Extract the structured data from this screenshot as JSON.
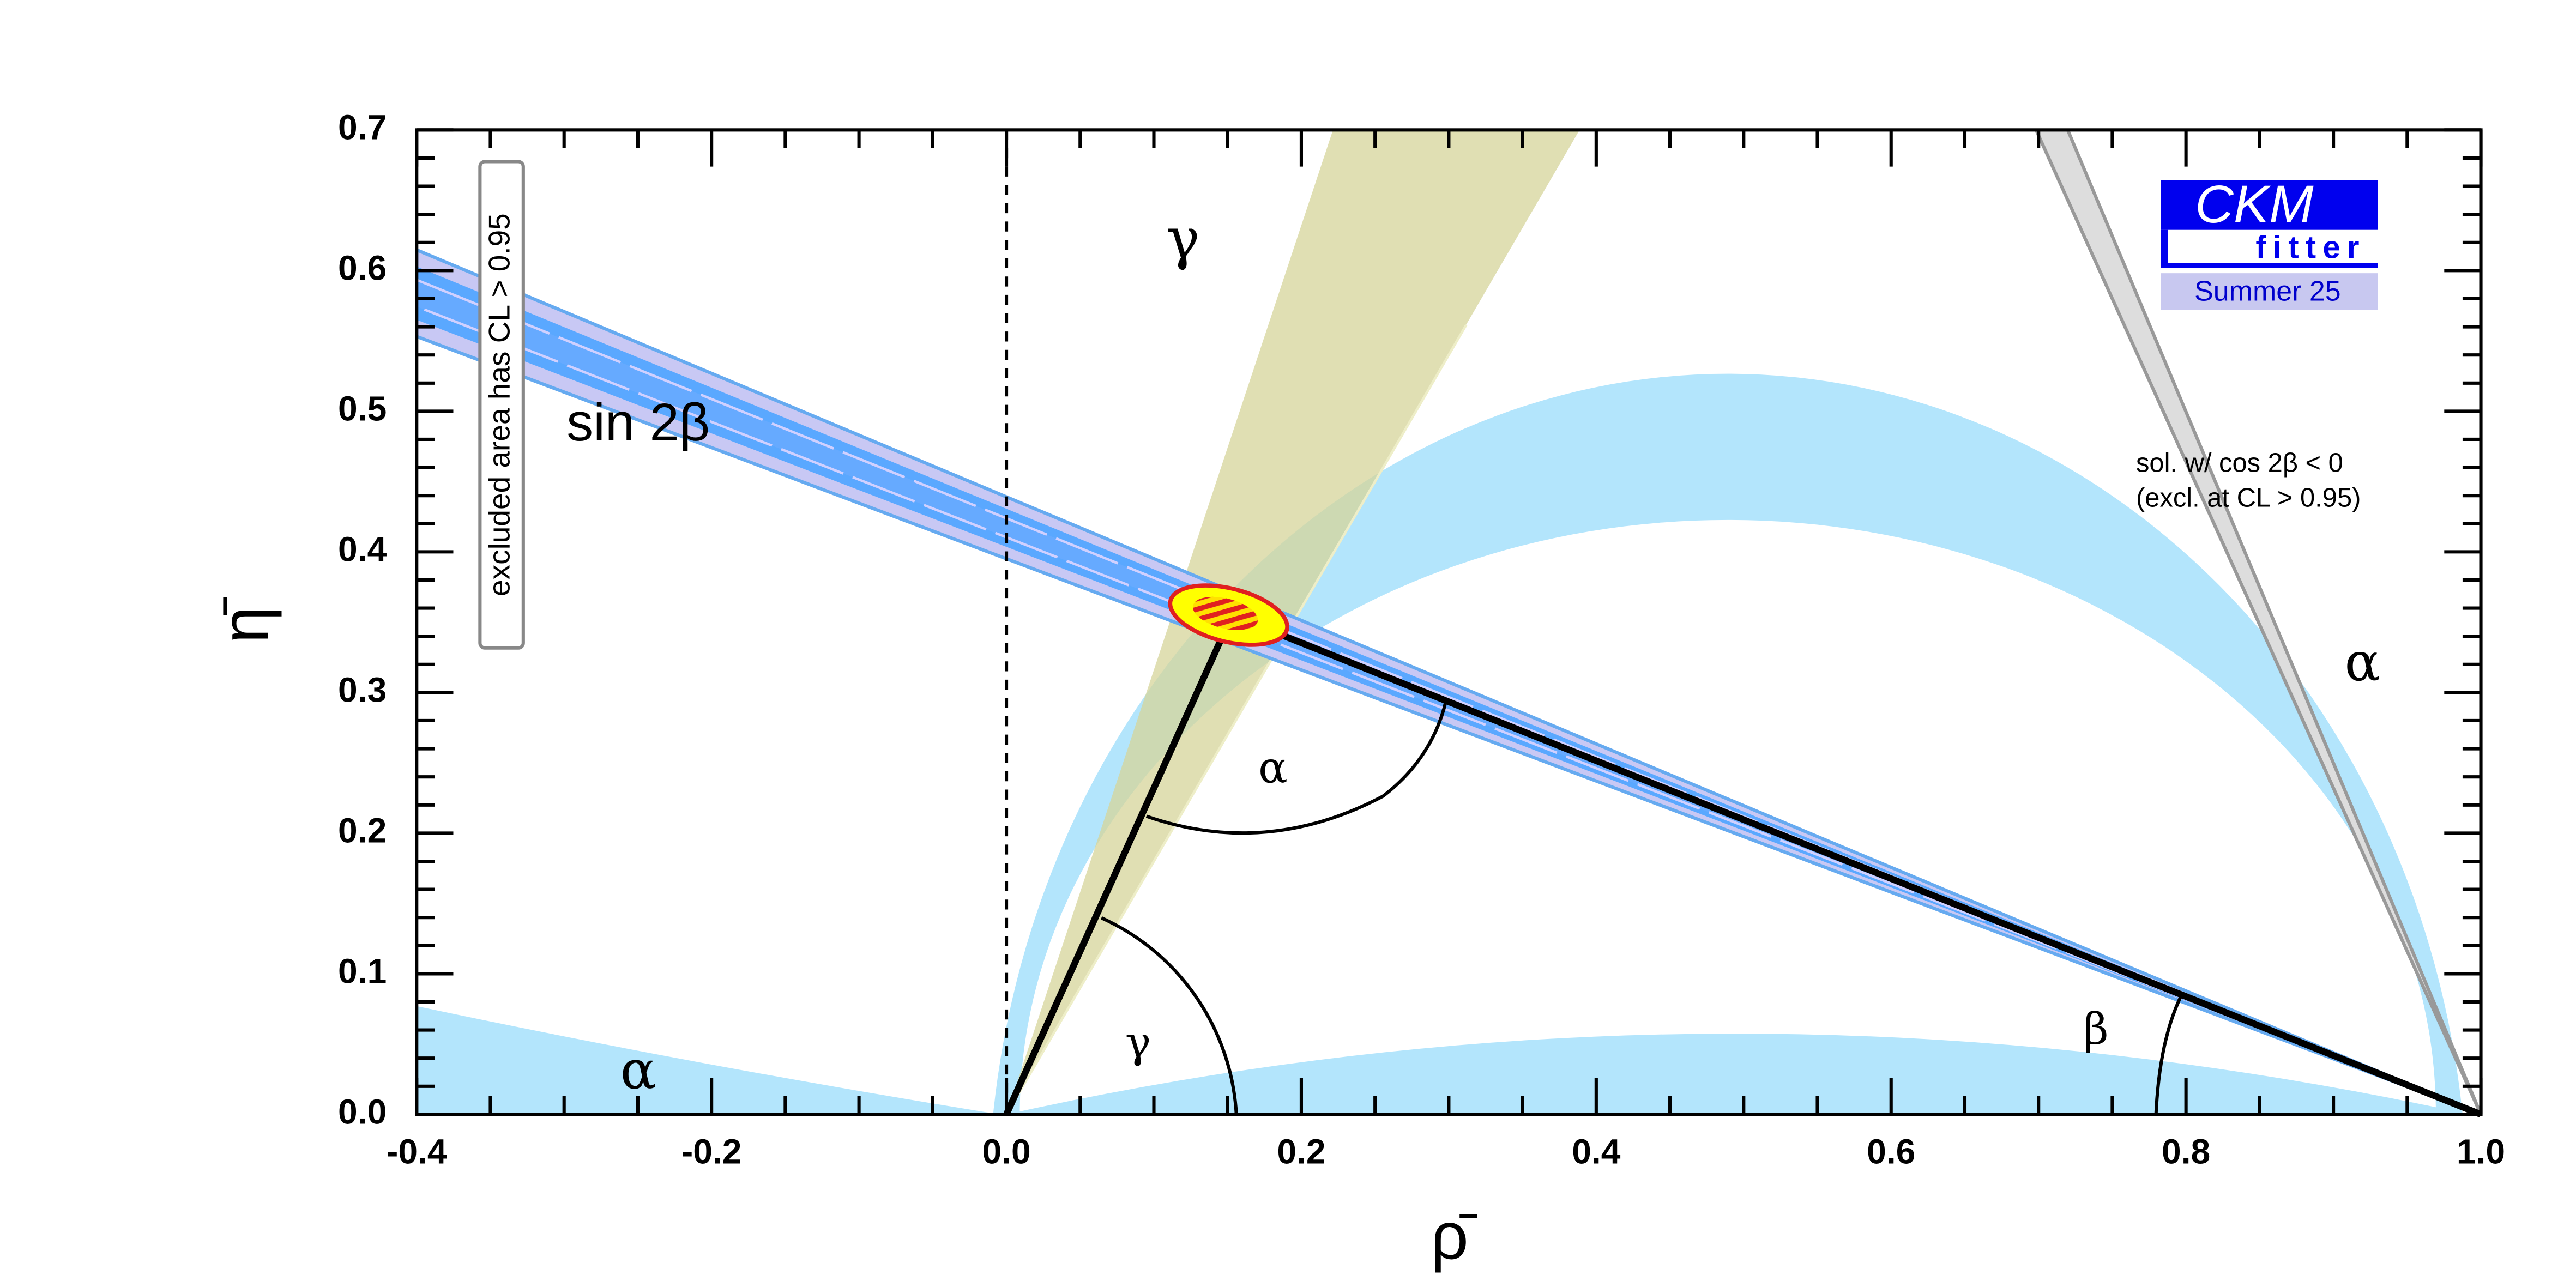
{
  "chart_data": {
    "type": "ckm",
    "x_label": "ρ̄",
    "y_label": "η̄",
    "xlim": [
      -0.4,
      1.0
    ],
    "ylim": [
      0,
      0.7
    ],
    "xticks": [
      -0.4,
      -0.2,
      {
        "value": 0,
        "label": "0.0"
      },
      0.2,
      0.4,
      0.6,
      0.8,
      {
        "value": 1,
        "label": "1.0"
      }
    ],
    "yticks": [
      {
        "value": 0,
        "label": "0.0"
      },
      0.1,
      0.2,
      0.3,
      0.4,
      0.5,
      0.6,
      0.7
    ],
    "vertices": [
      {
        "rho": 0,
        "eta": 0
      },
      {
        "rho": 1,
        "eta": 0
      },
      {
        "rho": 0.153,
        "eta": 0.355
      }
    ],
    "annotations": {
      "gamma_top": "γ",
      "gamma_angle": "γ",
      "alpha_angle": "α",
      "beta_angle": "β",
      "alpha_right": "α",
      "alpha_left": "α",
      "sin2beta": "sin 2β",
      "excluded": "excluded area has CL > 0.95",
      "sol_line1": "sol. w/ cos 2β < 0",
      "sol_line2": "(excl. at CL > 0.95)"
    },
    "logo": {
      "name": "CKM",
      "sub": "fitter",
      "edition": "Summer 25"
    }
  }
}
